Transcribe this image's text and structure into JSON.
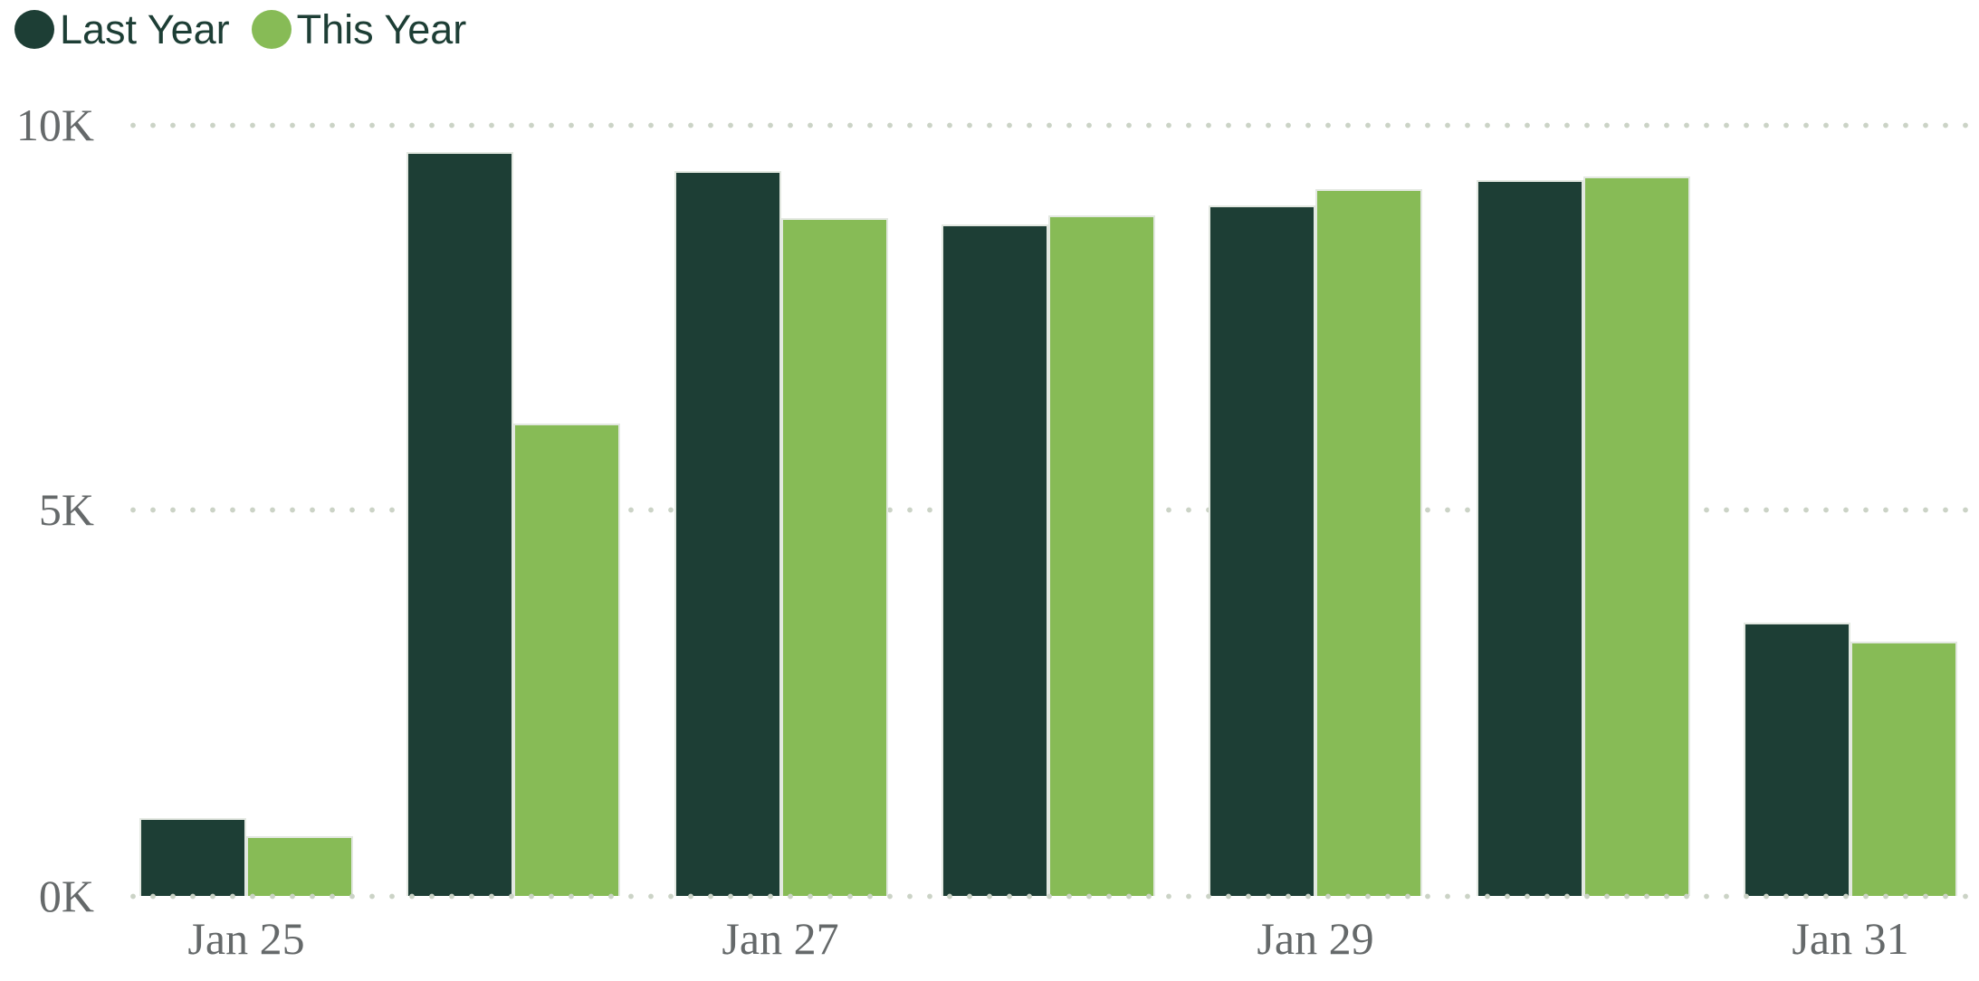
{
  "legend": {
    "items": [
      {
        "label": "Last Year",
        "color": "#1D3E35"
      },
      {
        "label": "This Year",
        "color": "#87BB56"
      }
    ]
  },
  "chart_data": {
    "type": "bar",
    "title": "",
    "categories": [
      "Jan 25",
      "",
      "Jan 27",
      "",
      "Jan 29",
      "",
      "Jan 31"
    ],
    "series": [
      {
        "name": "Last Year",
        "color": "#1D3E35",
        "values": [
          1010,
          9650,
          9400,
          8710,
          8950,
          9280,
          3540
        ]
      },
      {
        "name": "This Year",
        "color": "#87BB56",
        "values": [
          780,
          6130,
          8790,
          8830,
          9170,
          9330,
          3300
        ]
      }
    ],
    "ylim": [
      0,
      10000
    ],
    "y_ticks": [
      "0K",
      "5K",
      "10K"
    ],
    "x_tick_step": 2,
    "grid": "horizontal-dotted",
    "legend_position": "top-left",
    "xlabel": "",
    "ylabel": ""
  },
  "colors": {
    "axis_text": "#65696A",
    "grid_dot": "#CBD3C6",
    "background": "#FFFFFF"
  }
}
